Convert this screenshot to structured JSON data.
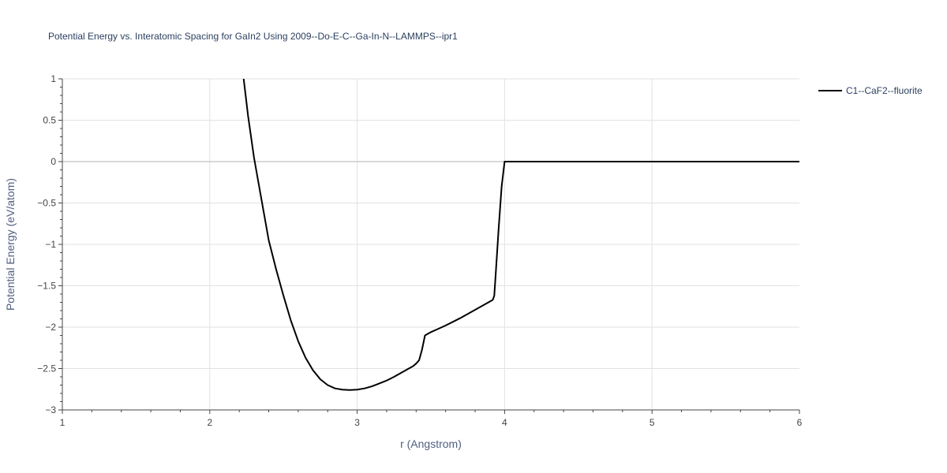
{
  "chart_data": {
    "type": "line",
    "title": "Potential Energy vs. Interatomic Spacing for GaIn2 Using 2009--Do-E-C--Ga-In-N--LAMMPS--ipr1",
    "xlabel": "r (Angstrom)",
    "ylabel": "Potential Energy (eV/atom)",
    "xlim": [
      1,
      6
    ],
    "ylim": [
      -3,
      1
    ],
    "xticks": [
      "1",
      "2",
      "3",
      "4",
      "5",
      "6"
    ],
    "yticks": [
      "1",
      "0.5",
      "0",
      "−0.5",
      "−1",
      "−1.5",
      "−2",
      "−2.5",
      "−3"
    ],
    "grid": true,
    "legend_position": "right",
    "series": [
      {
        "name": "C1--CaF2--fluorite",
        "color": "#000000",
        "x": [
          2.23,
          2.26,
          2.3,
          2.33,
          2.37,
          2.4,
          2.45,
          2.5,
          2.55,
          2.6,
          2.65,
          2.7,
          2.75,
          2.8,
          2.85,
          2.9,
          2.95,
          3.0,
          3.05,
          3.1,
          3.15,
          3.2,
          3.25,
          3.3,
          3.35,
          3.38,
          3.4,
          3.42,
          3.44,
          3.46,
          3.5,
          3.55,
          3.6,
          3.65,
          3.7,
          3.75,
          3.8,
          3.85,
          3.9,
          3.92,
          3.93,
          3.94,
          3.96,
          3.98,
          4.0,
          4.5,
          5.0,
          5.5,
          6.0
        ],
        "y": [
          1.0,
          0.55,
          0.05,
          -0.25,
          -0.65,
          -0.95,
          -1.3,
          -1.62,
          -1.92,
          -2.17,
          -2.37,
          -2.52,
          -2.63,
          -2.7,
          -2.74,
          -2.755,
          -2.76,
          -2.755,
          -2.74,
          -2.715,
          -2.68,
          -2.645,
          -2.6,
          -2.55,
          -2.5,
          -2.47,
          -2.44,
          -2.4,
          -2.27,
          -2.1,
          -2.06,
          -2.02,
          -1.98,
          -1.935,
          -1.89,
          -1.84,
          -1.79,
          -1.74,
          -1.69,
          -1.67,
          -1.62,
          -1.35,
          -0.8,
          -0.3,
          0.0,
          0.0,
          0.0,
          0.0,
          0.0
        ]
      }
    ]
  }
}
